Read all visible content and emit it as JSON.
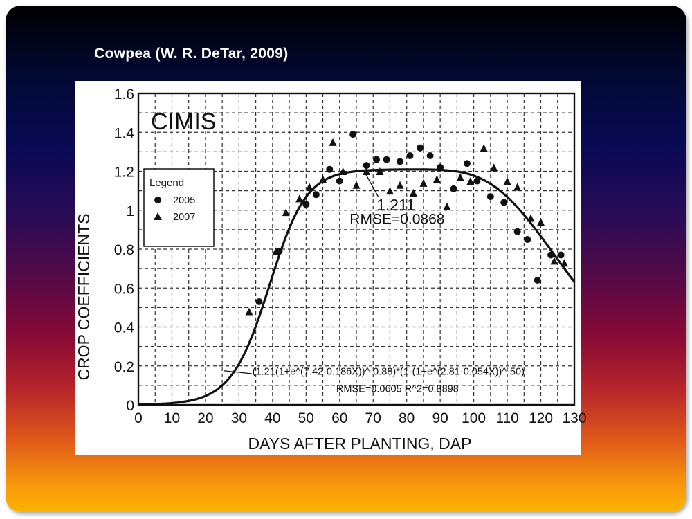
{
  "slide": {
    "title": "Cowpea (W. R. DeTar, 2009)"
  },
  "colors": {
    "background_top": "#000000",
    "background_bottom": "#fbb400",
    "title_text": "#ffffff",
    "plot_ink": "#111111"
  },
  "chart_data": {
    "type": "scatter",
    "inner_title": "CIMIS",
    "xlabel": "DAYS AFTER PLANTING, DAP",
    "ylabel": "CROP COEFFICIENTS",
    "xlim": [
      0,
      130
    ],
    "ylim": [
      0,
      1.6
    ],
    "x_ticks": [
      0,
      10,
      20,
      30,
      40,
      50,
      60,
      70,
      80,
      90,
      100,
      110,
      120,
      130
    ],
    "x_tick_labels": [
      "0",
      "10",
      "20",
      "30",
      "40",
      "50",
      "60",
      "70",
      "80",
      "90",
      "100",
      "110",
      "120",
      "130"
    ],
    "y_ticks": [
      0,
      0.2,
      0.4,
      0.6,
      0.8,
      1.0,
      1.2,
      1.4,
      1.6
    ],
    "y_tick_labels": [
      "0",
      "0.2",
      "0.4",
      "0.6",
      "0.8",
      "1",
      "1.2",
      "1.4",
      "1.6"
    ],
    "grid": true,
    "legend": {
      "title": "Legend",
      "placement": "left",
      "entries": [
        {
          "label": "2005",
          "marker": "circle"
        },
        {
          "label": "2007",
          "marker": "triangle"
        }
      ]
    },
    "series": [
      {
        "name": "2005",
        "marker": "circle",
        "points": [
          [
            36,
            0.53
          ],
          [
            42,
            0.79
          ],
          [
            50,
            1.03
          ],
          [
            53,
            1.08
          ],
          [
            57,
            1.21
          ],
          [
            60,
            1.15
          ],
          [
            64,
            1.39
          ],
          [
            68,
            1.23
          ],
          [
            71,
            1.26
          ],
          [
            74,
            1.26
          ],
          [
            78,
            1.25
          ],
          [
            81,
            1.28
          ],
          [
            84,
            1.32
          ],
          [
            87,
            1.28
          ],
          [
            90,
            1.22
          ],
          [
            94,
            1.11
          ],
          [
            98,
            1.24
          ],
          [
            101,
            1.15
          ],
          [
            105,
            1.07
          ],
          [
            109,
            1.04
          ],
          [
            113,
            0.89
          ],
          [
            116,
            0.85
          ],
          [
            119,
            0.64
          ],
          [
            123,
            0.77
          ],
          [
            126,
            0.77
          ]
        ]
      },
      {
        "name": "2007",
        "marker": "triangle",
        "points": [
          [
            33,
            0.48
          ],
          [
            41,
            0.79
          ],
          [
            44,
            0.99
          ],
          [
            48,
            1.06
          ],
          [
            51,
            1.12
          ],
          [
            55,
            1.16
          ],
          [
            58,
            1.35
          ],
          [
            61,
            1.2
          ],
          [
            65,
            1.13
          ],
          [
            68,
            1.2
          ],
          [
            72,
            1.2
          ],
          [
            75,
            1.1
          ],
          [
            78,
            1.13
          ],
          [
            82,
            1.09
          ],
          [
            85,
            1.14
          ],
          [
            89,
            1.16
          ],
          [
            92,
            1.02
          ],
          [
            96,
            1.17
          ],
          [
            99,
            1.15
          ],
          [
            103,
            1.32
          ],
          [
            106,
            1.22
          ],
          [
            110,
            1.15
          ],
          [
            113,
            1.12
          ],
          [
            117,
            0.96
          ],
          [
            120,
            0.94
          ],
          [
            124,
            0.74
          ],
          [
            127,
            0.73
          ]
        ]
      }
    ],
    "fit_curve": {
      "equation": "(1.21(1+e^(7.42-0.186X))^-0.88)*(1-(1+e^(2.81-0.054X))^-50)",
      "params": {
        "kmax": 1.21,
        "a1": 7.42,
        "b1": 0.186,
        "p1": 0.88,
        "a2": 2.81,
        "b2": 0.054,
        "p2": 50
      },
      "plateau_label": "1.211",
      "plateau_rmse_label": "RMSE=0.0868",
      "equation_label": "(1.21(1+e^(7.42-0.186X))^-0.88)*(1-(1+e^(2.81-0.054X))^-50)",
      "fit_stats_label": "RMSE=0.0605    R^2=0.8898"
    }
  }
}
